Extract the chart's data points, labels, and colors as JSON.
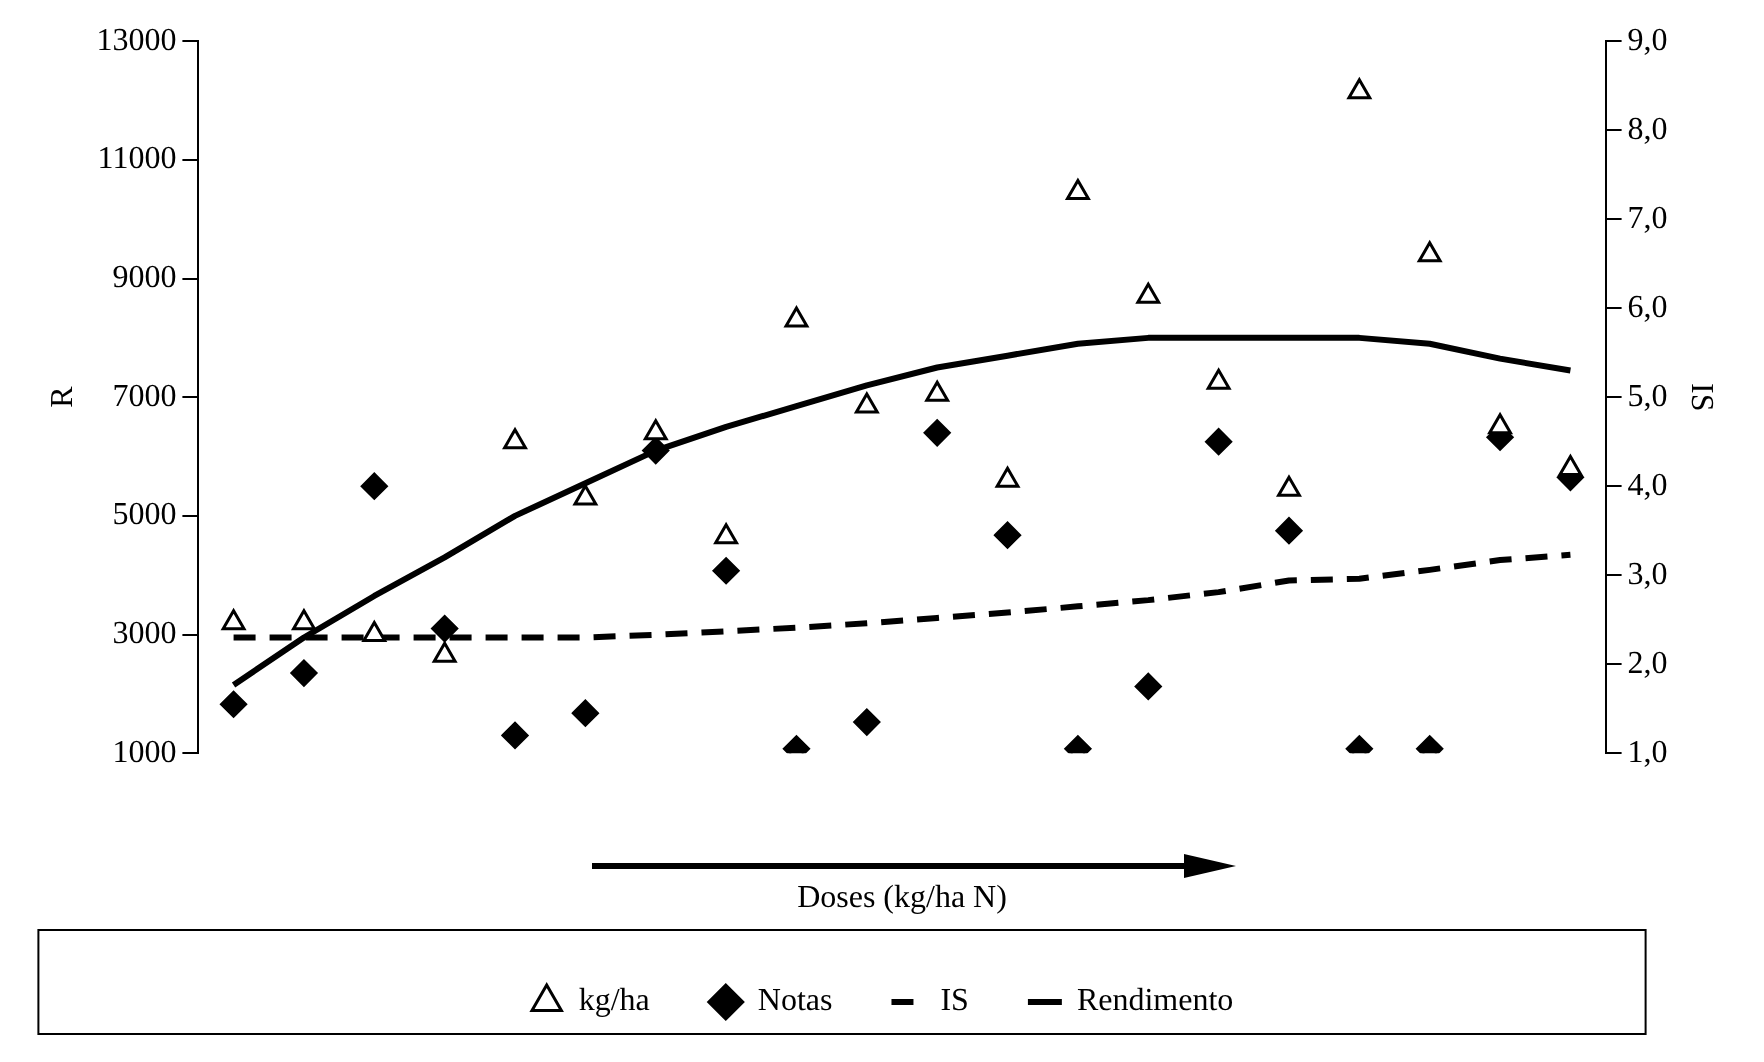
{
  "chart_data": {
    "type": "scatter",
    "xlabel": "Doses (kg/ha N)",
    "ylabel": "R",
    "y2label": "IS",
    "categories": [
      null,
      null,
      null,
      null,
      null,
      null,
      null,
      null,
      null,
      null,
      null,
      null,
      null,
      null,
      null,
      null,
      null,
      null,
      null,
      null
    ],
    "series": [
      {
        "name": "kg/ha",
        "marker": "triangle",
        "axis": "y",
        "color": "#000000",
        "values": [
          3200,
          3200,
          3000,
          2650,
          6250,
          5300,
          6400,
          4650,
          8300,
          6850,
          7050,
          5600,
          10450,
          8700,
          7250,
          5450,
          12150,
          9400,
          6500,
          5800
        ]
      },
      {
        "name": "Notas",
        "marker": "diamond",
        "axis": "y2",
        "color": "#000000",
        "values": [
          1.55,
          1.9,
          4.0,
          2.4,
          1.2,
          1.45,
          4.4,
          3.05,
          1.05,
          1.35,
          4.6,
          3.45,
          1.05,
          1.75,
          4.5,
          3.5,
          1.05,
          1.05,
          4.55,
          4.1
        ]
      },
      {
        "name": "IS",
        "type": "line",
        "marker": "none",
        "line_style": "dashed",
        "axis": "y2",
        "color": "#000000",
        "values": [
          2.3,
          2.3,
          2.3,
          2.3,
          2.3,
          2.3,
          2.33,
          2.37,
          2.41,
          2.46,
          2.52,
          2.58,
          2.65,
          2.72,
          2.81,
          2.94,
          2.96,
          3.06,
          3.17,
          3.23
        ]
      },
      {
        "name": "Rendimento",
        "type": "line",
        "marker": "none",
        "line_style": "solid",
        "axis": "y",
        "color": "#000000",
        "values": [
          2150,
          2950,
          3650,
          4300,
          5000,
          5550,
          6100,
          6500,
          6850,
          7200,
          7500,
          7700,
          7900,
          8000,
          8000,
          8000,
          8000,
          7900,
          7650,
          7450
        ]
      }
    ],
    "ylim": [
      1000,
      13000
    ],
    "yticks": [
      1000,
      3000,
      5000,
      7000,
      9000,
      11000,
      13000
    ],
    "y2lim": [
      1,
      9
    ],
    "y2ticks": [
      {
        "value": 1,
        "label": "1,0"
      },
      {
        "value": 2,
        "label": "2,0"
      },
      {
        "value": 3,
        "label": "3,0"
      },
      {
        "value": 4,
        "label": "4,0"
      },
      {
        "value": 5,
        "label": "5,0"
      },
      {
        "value": 6,
        "label": "6,0"
      },
      {
        "value": 7,
        "label": "7,0"
      },
      {
        "value": 8,
        "label": "8,0"
      },
      {
        "value": 9,
        "label": "9,0"
      }
    ],
    "grid": false,
    "legend": "bottom"
  }
}
